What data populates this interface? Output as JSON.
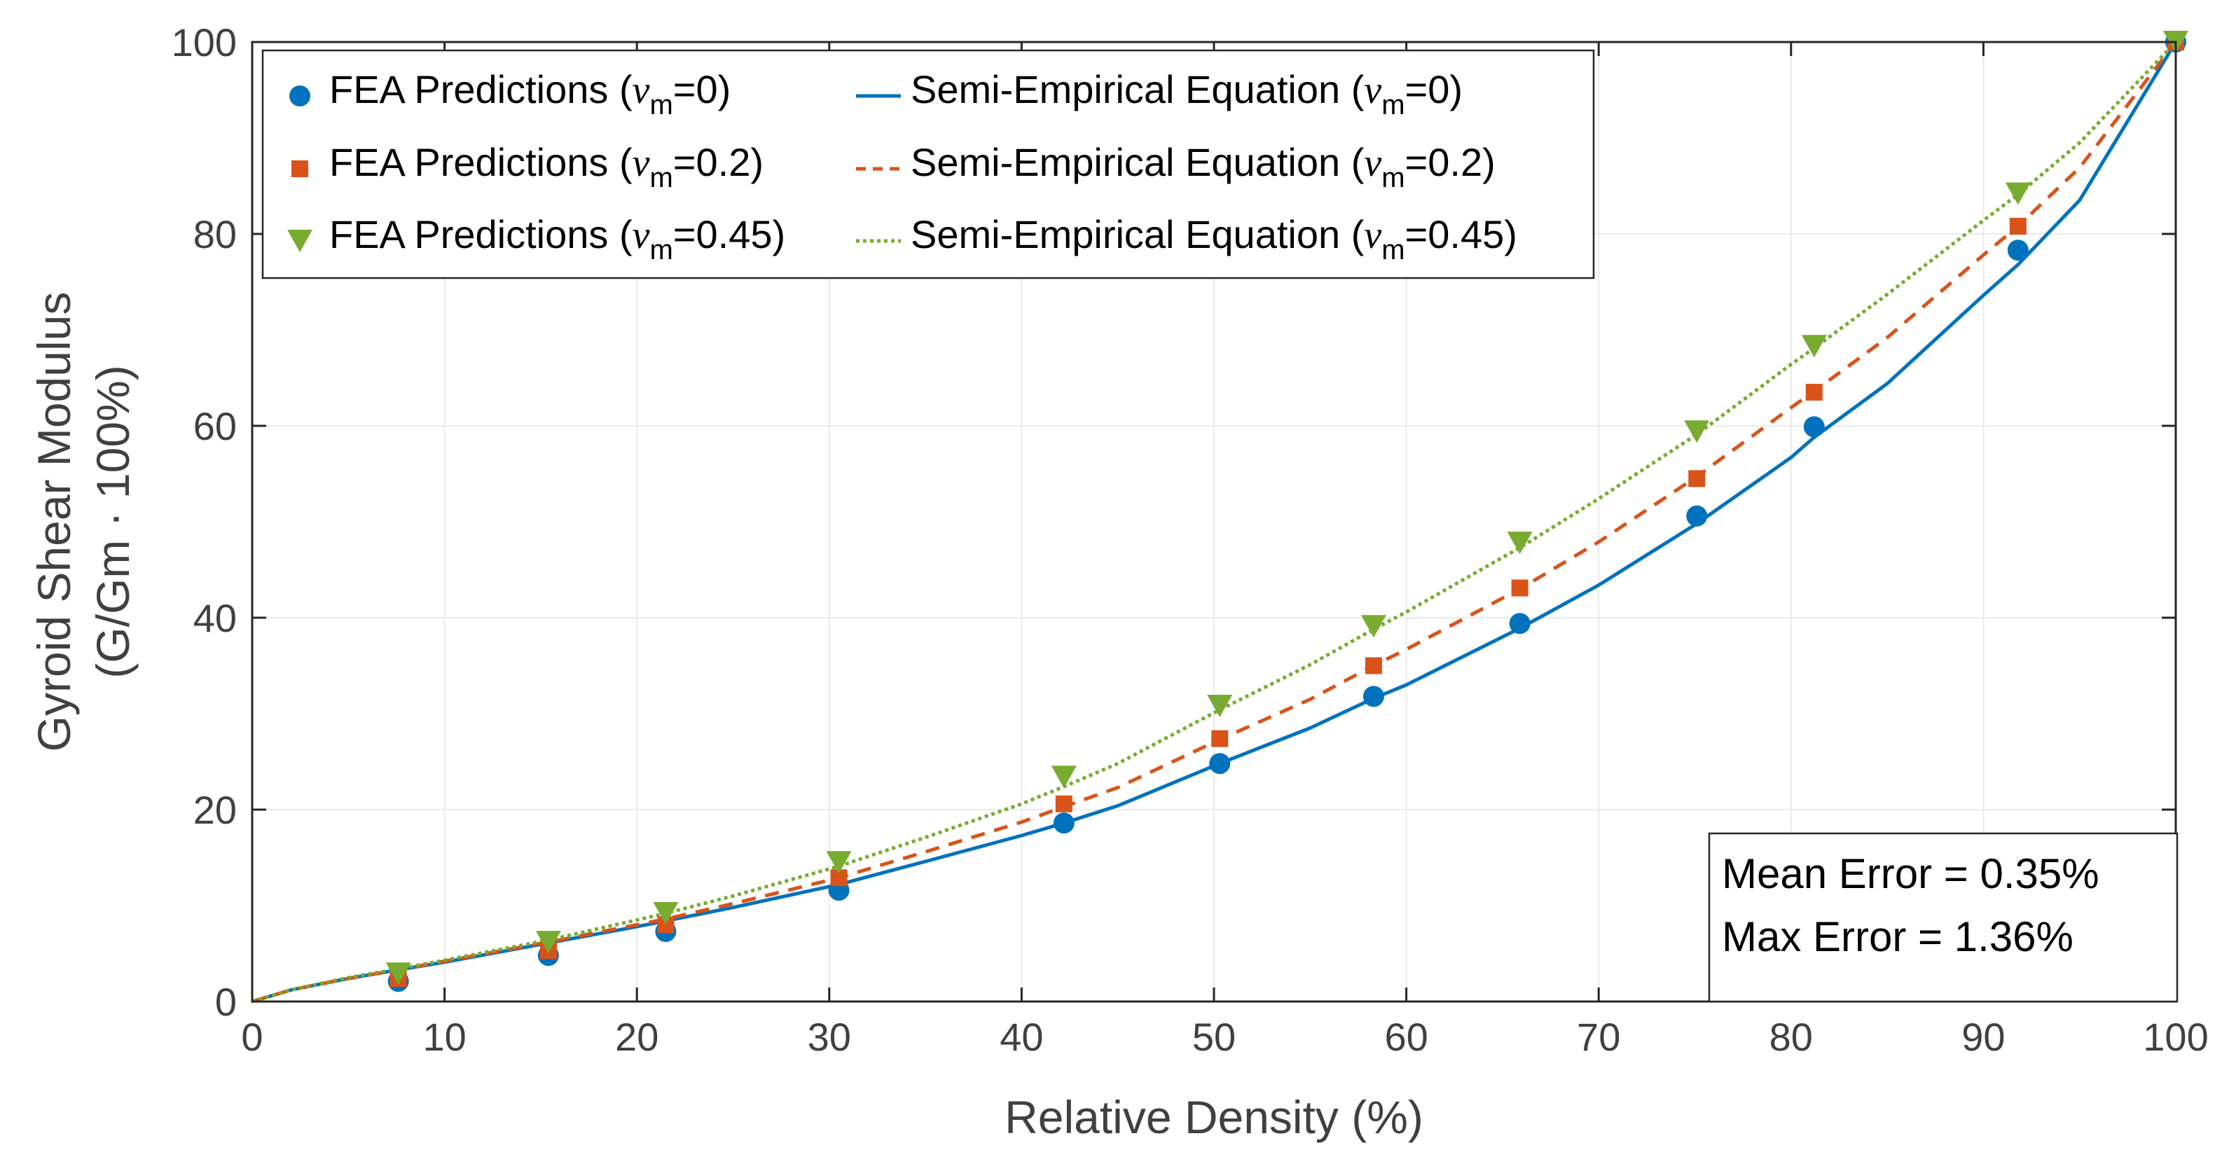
{
  "chart_data": {
    "type": "line",
    "xlabel": "Relative Density (%)",
    "ylabel_line1": "Gyroid Shear Modulus",
    "ylabel_line2": "(G/Gm · 100%)",
    "xlim": [
      0,
      100
    ],
    "ylim": [
      0,
      100
    ],
    "xticks": [
      0,
      10,
      20,
      30,
      40,
      50,
      60,
      70,
      80,
      90,
      100
    ],
    "yticks": [
      0,
      20,
      40,
      60,
      80,
      100
    ],
    "grid": true,
    "legend_position": "top-left",
    "colors": {
      "blue": "#0072BD",
      "orange": "#D95319",
      "green": "#77AC30",
      "axis": "#262626",
      "grid": "#ebebeb"
    },
    "scatter_series": [
      {
        "name": "FEA Predictions (νm=0)",
        "label_main": "FEA Predictions (",
        "label_nu": "ν",
        "label_sub": "m",
        "label_tail": "=0)",
        "marker": "circle",
        "color": "#0072BD",
        "x": [
          7.6,
          15.4,
          21.5,
          30.5,
          42.2,
          50.3,
          58.3,
          65.9,
          75.1,
          81.2,
          91.8,
          100
        ],
        "y": [
          2.1,
          4.8,
          7.3,
          11.6,
          18.6,
          24.8,
          31.8,
          39.4,
          50.6,
          59.9,
          78.3,
          100
        ]
      },
      {
        "name": "FEA Predictions (νm=0.2)",
        "label_main": "FEA Predictions (",
        "label_nu": "ν",
        "label_sub": "m",
        "label_tail": "=0.2)",
        "marker": "square",
        "color": "#D95319",
        "x": [
          7.6,
          15.4,
          21.5,
          30.5,
          42.2,
          50.3,
          58.3,
          65.9,
          75.1,
          81.2,
          91.8,
          100
        ],
        "y": [
          2.4,
          5.3,
          8.0,
          12.9,
          20.6,
          27.4,
          35.0,
          43.1,
          54.5,
          63.5,
          80.8,
          100
        ]
      },
      {
        "name": "FEA Predictions (νm=0.45)",
        "label_main": "FEA Predictions (",
        "label_nu": "ν",
        "label_sub": "m",
        "label_tail": "=0.45)",
        "marker": "triangle-down",
        "color": "#77AC30",
        "x": [
          7.6,
          15.4,
          21.5,
          30.5,
          42.2,
          50.3,
          58.3,
          65.9,
          75.1,
          81.2,
          91.8,
          100
        ],
        "y": [
          2.9,
          6.2,
          9.2,
          14.5,
          23.4,
          30.8,
          39.1,
          47.8,
          59.4,
          68.3,
          84.2,
          100
        ]
      }
    ],
    "line_series": [
      {
        "name": "Semi-Empirical Equation (νm=0)",
        "label_main": "Semi-Empirical Equation (",
        "label_nu": "ν",
        "label_sub": "m",
        "label_tail": "=0)",
        "style": "solid",
        "color": "#0072BD",
        "x": [
          0,
          2,
          5,
          7.6,
          10,
          15.4,
          20,
          21.5,
          25,
          30.5,
          35,
          40,
          42.2,
          45,
          50.3,
          55,
          58.3,
          60,
          65.9,
          70,
          75.1,
          80,
          81.2,
          85,
          90,
          91.8,
          95,
          100
        ],
        "y": [
          0,
          1.2,
          2.4,
          3.3,
          4.1,
          6.1,
          7.8,
          8.4,
          9.8,
          12.2,
          14.6,
          17.3,
          18.6,
          20.4,
          24.8,
          28.5,
          31.6,
          33.0,
          38.9,
          43.4,
          49.8,
          56.7,
          58.8,
          64.4,
          73.6,
          76.8,
          83.5,
          100
        ]
      },
      {
        "name": "Semi-Empirical Equation (νm=0.2)",
        "label_main": "Semi-Empirical Equation (",
        "label_nu": "ν",
        "label_sub": "m",
        "label_tail": "=0.2)",
        "style": "dashed",
        "color": "#D95319",
        "x": [
          0,
          2,
          5,
          7.6,
          10,
          15.4,
          20,
          21.5,
          25,
          30.5,
          35,
          40,
          42.2,
          45,
          50.3,
          55,
          58.3,
          60,
          65.9,
          70,
          75.1,
          80,
          81.2,
          85,
          90,
          91.8,
          95,
          100
        ],
        "y": [
          0,
          1.2,
          2.4,
          3.3,
          4.2,
          6.2,
          8.0,
          8.6,
          10.2,
          12.9,
          15.6,
          18.7,
          20.3,
          22.3,
          27.3,
          31.5,
          35.0,
          36.7,
          43.0,
          47.9,
          54.7,
          61.9,
          63.6,
          69.2,
          77.8,
          80.8,
          86.9,
          100
        ]
      },
      {
        "name": "Semi-Empirical Equation (νm=0.45)",
        "label_main": "Semi-Empirical Equation (",
        "label_nu": "ν",
        "label_sub": "m",
        "label_tail": "=0.45)",
        "style": "dotted",
        "color": "#77AC30",
        "x": [
          0,
          2,
          5,
          7.6,
          10,
          15.4,
          20,
          21.5,
          25,
          30.5,
          35,
          40,
          42.2,
          45,
          50.3,
          55,
          58.3,
          60,
          65.9,
          70,
          75.1,
          80,
          81.2,
          85,
          90,
          91.8,
          95,
          100
        ],
        "y": [
          0,
          1.2,
          2.5,
          3.4,
          4.3,
          6.4,
          8.5,
          9.2,
          11.0,
          14.1,
          17.1,
          20.6,
          22.4,
          24.8,
          30.4,
          35.1,
          38.8,
          40.6,
          47.3,
          52.4,
          59.1,
          66.4,
          68.1,
          73.7,
          81.4,
          84.1,
          89.5,
          100
        ]
      }
    ],
    "annotation": {
      "line1": "Mean Error = 0.35%",
      "line2": "Max Error = 1.36%"
    }
  }
}
